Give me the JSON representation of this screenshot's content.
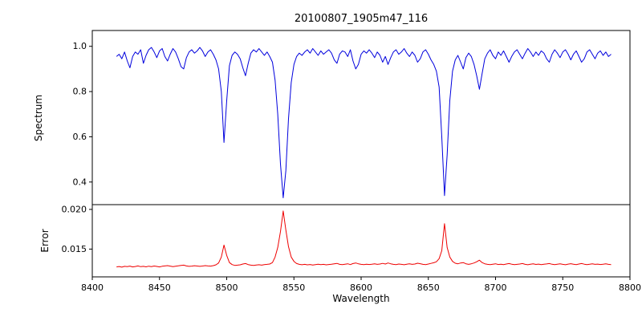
{
  "figure_title": "20100807_1905m47_116",
  "colors": {
    "spectrum_line": "#0000dd",
    "error_line": "#ee0000",
    "axis": "#000000",
    "background": "#ffffff"
  },
  "chart_data": [
    {
      "type": "line",
      "name": "spectrum-line",
      "title": "20100807_1905m47_116",
      "ylabel": "Spectrum",
      "color": "#0000dd",
      "xlim": [
        8400,
        8800
      ],
      "ylim": [
        0.3,
        1.07
      ],
      "x_start": 8418,
      "x_step": 2,
      "show_x_ticks": false,
      "x_ticks": [
        8400,
        8450,
        8500,
        8550,
        8600,
        8650,
        8700,
        8750,
        8800
      ],
      "x_tick_labels": [
        "8400",
        "8450",
        "8500",
        "8550",
        "8600",
        "8650",
        "8700",
        "8750",
        "8800"
      ],
      "y_ticks": [
        0.4,
        0.6,
        0.8,
        1.0
      ],
      "y_tick_labels": [
        "0.4",
        "0.6",
        "0.8",
        "1.0"
      ],
      "grid": false,
      "legend": "none",
      "values": [
        0.955,
        0.965,
        0.945,
        0.975,
        0.935,
        0.905,
        0.955,
        0.975,
        0.965,
        0.985,
        0.925,
        0.96,
        0.985,
        0.995,
        0.975,
        0.95,
        0.98,
        0.99,
        0.955,
        0.935,
        0.965,
        0.99,
        0.975,
        0.945,
        0.91,
        0.9,
        0.95,
        0.975,
        0.985,
        0.97,
        0.98,
        0.995,
        0.98,
        0.955,
        0.975,
        0.985,
        0.965,
        0.94,
        0.9,
        0.8,
        0.575,
        0.76,
        0.915,
        0.96,
        0.975,
        0.965,
        0.945,
        0.905,
        0.87,
        0.925,
        0.97,
        0.985,
        0.975,
        0.99,
        0.975,
        0.96,
        0.975,
        0.955,
        0.93,
        0.85,
        0.7,
        0.48,
        0.33,
        0.45,
        0.68,
        0.84,
        0.92,
        0.955,
        0.97,
        0.96,
        0.975,
        0.985,
        0.97,
        0.99,
        0.975,
        0.96,
        0.98,
        0.965,
        0.975,
        0.985,
        0.97,
        0.94,
        0.925,
        0.965,
        0.98,
        0.975,
        0.955,
        0.985,
        0.935,
        0.9,
        0.92,
        0.965,
        0.98,
        0.97,
        0.985,
        0.97,
        0.95,
        0.975,
        0.96,
        0.93,
        0.955,
        0.92,
        0.95,
        0.975,
        0.985,
        0.965,
        0.975,
        0.99,
        0.97,
        0.955,
        0.975,
        0.96,
        0.93,
        0.945,
        0.975,
        0.985,
        0.965,
        0.94,
        0.92,
        0.89,
        0.82,
        0.6,
        0.34,
        0.52,
        0.76,
        0.89,
        0.94,
        0.96,
        0.93,
        0.9,
        0.95,
        0.97,
        0.955,
        0.92,
        0.87,
        0.81,
        0.88,
        0.945,
        0.97,
        0.985,
        0.96,
        0.945,
        0.975,
        0.96,
        0.98,
        0.955,
        0.93,
        0.955,
        0.975,
        0.985,
        0.965,
        0.945,
        0.97,
        0.99,
        0.975,
        0.955,
        0.975,
        0.96,
        0.98,
        0.97,
        0.945,
        0.93,
        0.965,
        0.985,
        0.97,
        0.95,
        0.975,
        0.985,
        0.965,
        0.94,
        0.965,
        0.98,
        0.955,
        0.93,
        0.945,
        0.975,
        0.985,
        0.965,
        0.945,
        0.97,
        0.98,
        0.96,
        0.975,
        0.955,
        0.965
      ]
    },
    {
      "type": "line",
      "name": "error-line",
      "ylabel": "Error",
      "xlabel": "Wavelength",
      "color": "#ee0000",
      "xlim": [
        8400,
        8800
      ],
      "ylim": [
        0.0115,
        0.0206
      ],
      "x_start": 8418,
      "x_step": 2,
      "show_x_ticks": true,
      "x_ticks": [
        8400,
        8450,
        8500,
        8550,
        8600,
        8650,
        8700,
        8750,
        8800
      ],
      "x_tick_labels": [
        "8400",
        "8450",
        "8500",
        "8550",
        "8600",
        "8650",
        "8700",
        "8750",
        "8800"
      ],
      "y_ticks": [
        0.015,
        0.02
      ],
      "y_tick_labels": [
        "0.015",
        "0.020"
      ],
      "grid": false,
      "legend": "none",
      "values": [
        0.01275,
        0.0128,
        0.01272,
        0.01282,
        0.01278,
        0.01285,
        0.01275,
        0.0128,
        0.01288,
        0.01278,
        0.01282,
        0.01276,
        0.01284,
        0.01279,
        0.01286,
        0.01281,
        0.01275,
        0.01283,
        0.01288,
        0.01292,
        0.01285,
        0.01278,
        0.01283,
        0.01289,
        0.01295,
        0.01298,
        0.01288,
        0.01282,
        0.01285,
        0.01291,
        0.01287,
        0.01282,
        0.01286,
        0.01292,
        0.01288,
        0.01285,
        0.01292,
        0.01302,
        0.01325,
        0.014,
        0.0155,
        0.0142,
        0.0133,
        0.01305,
        0.01295,
        0.01298,
        0.01302,
        0.01312,
        0.01318,
        0.01305,
        0.01298,
        0.01295,
        0.01299,
        0.01303,
        0.01298,
        0.01305,
        0.01308,
        0.01312,
        0.0133,
        0.014,
        0.0152,
        0.0172,
        0.0198,
        0.0174,
        0.0153,
        0.014,
        0.01345,
        0.01318,
        0.01308,
        0.01303,
        0.01308,
        0.01302,
        0.01306,
        0.01299,
        0.01305,
        0.0131,
        0.01304,
        0.01308,
        0.01302,
        0.01306,
        0.0131,
        0.01315,
        0.0132,
        0.01308,
        0.01305,
        0.0131,
        0.01315,
        0.01305,
        0.01318,
        0.01325,
        0.01315,
        0.01308,
        0.01305,
        0.0131,
        0.01306,
        0.01309,
        0.01315,
        0.01308,
        0.01312,
        0.0132,
        0.01312,
        0.01325,
        0.01315,
        0.01308,
        0.01305,
        0.01312,
        0.01308,
        0.01303,
        0.0131,
        0.01315,
        0.01308,
        0.01312,
        0.01322,
        0.01316,
        0.01308,
        0.01305,
        0.01312,
        0.0132,
        0.01328,
        0.0134,
        0.0138,
        0.0148,
        0.0182,
        0.0152,
        0.014,
        0.01345,
        0.01322,
        0.01315,
        0.01325,
        0.0133,
        0.01315,
        0.01308,
        0.01315,
        0.01325,
        0.0134,
        0.0136,
        0.0133,
        0.01315,
        0.01308,
        0.01305,
        0.0131,
        0.01315,
        0.01306,
        0.0131,
        0.01305,
        0.01312,
        0.01318,
        0.0131,
        0.01304,
        0.01308,
        0.01312,
        0.01318,
        0.01308,
        0.01303,
        0.01309,
        0.01314,
        0.01307,
        0.01311,
        0.01305,
        0.01309,
        0.01313,
        0.01318,
        0.01309,
        0.01304,
        0.0131,
        0.01315,
        0.01308,
        0.01303,
        0.01311,
        0.01316,
        0.01309,
        0.01305,
        0.01312,
        0.01318,
        0.0131,
        0.01305,
        0.01309,
        0.01314,
        0.01308,
        0.01311,
        0.01306,
        0.0131,
        0.01315,
        0.01308,
        0.01305
      ]
    }
  ]
}
